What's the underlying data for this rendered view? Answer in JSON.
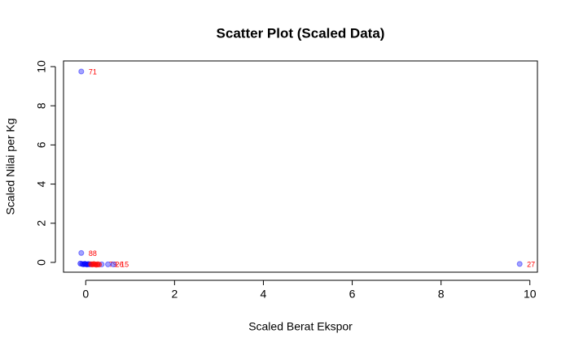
{
  "chart_data": {
    "type": "scatter",
    "title": "Scatter Plot (Scaled Data)",
    "x_label": "Scaled Berat Ekspor",
    "y_label": "Scaled Nilai per Kg",
    "x": [
      -0.1,
      -0.1,
      9.77,
      0.36,
      0.5,
      0.62,
      -0.12,
      -0.08,
      -0.05,
      -0.02,
      0.0,
      0.03,
      0.06,
      0.09,
      0.12,
      0.15,
      0.18,
      0.21,
      0.24,
      0.27,
      0.3
    ],
    "y": [
      9.75,
      0.48,
      -0.08,
      -0.1,
      -0.1,
      -0.1,
      -0.06,
      -0.08,
      -0.1,
      -0.07,
      -0.09,
      -0.11,
      -0.08,
      -0.1,
      -0.09,
      -0.11,
      -0.08,
      -0.1,
      -0.12,
      -0.09,
      -0.11
    ],
    "colors": [
      "#3333ff",
      "#3333ff",
      "#3333ff",
      "#3333ff",
      "#3333ff",
      "#3333ff",
      "#0000ff",
      "#0000ff",
      "#0000ff",
      "#0000ff",
      "#0000ff",
      "#0000ff",
      "#0000ff",
      "#0000ff",
      "#ff0000",
      "#ff0000",
      "#ff0000",
      "#ff0000",
      "#ff0000",
      "#ff0000",
      "#ff0000"
    ],
    "point_labels": [
      "71",
      "88",
      "27",
      "79",
      "26",
      "15",
      null,
      null,
      null,
      null,
      null,
      null,
      null,
      null,
      null,
      null,
      null,
      null,
      null,
      null,
      null
    ],
    "label_color": "#ff0000",
    "xlim": [
      -0.5,
      10.17
    ],
    "ylim": [
      -0.5,
      10.29
    ],
    "xticks": [
      0,
      2,
      4,
      6,
      8,
      10
    ],
    "yticks": [
      0,
      2,
      4,
      6,
      8,
      10
    ]
  }
}
